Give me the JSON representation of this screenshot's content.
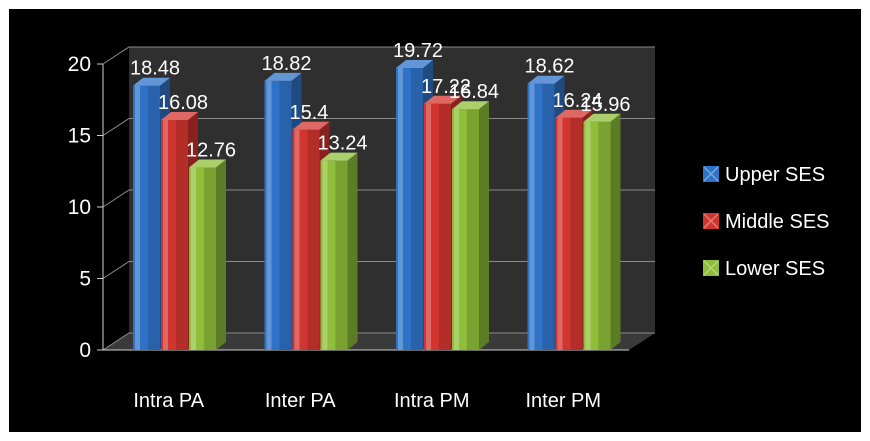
{
  "chart_data": {
    "type": "bar",
    "style": "3d-clustered-column",
    "categories": [
      "Intra PA",
      "Inter PA",
      "Intra PM",
      "Inter PM"
    ],
    "series": [
      {
        "name": "Upper SES",
        "values": [
          18.48,
          18.82,
          19.72,
          18.62
        ],
        "labels": [
          "18.48",
          "18.82",
          "19.72",
          "18.62"
        ],
        "color": "#2f73c8"
      },
      {
        "name": "Middle SES",
        "values": [
          16.08,
          15.4,
          17.22,
          16.24
        ],
        "labels": [
          "16.08",
          "15.4",
          "17.22",
          "16.24"
        ],
        "color": "#d23530"
      },
      {
        "name": "Lower SES",
        "values": [
          12.76,
          13.24,
          16.84,
          15.96
        ],
        "labels": [
          "12.76",
          "13.24",
          "16.84",
          "15.96"
        ],
        "color": "#8fbf3a"
      }
    ],
    "yticks": [
      "0",
      "5",
      "10",
      "15",
      "20"
    ],
    "ylim": [
      0,
      20
    ],
    "grid": true,
    "legend": "right",
    "background": "#000000"
  }
}
